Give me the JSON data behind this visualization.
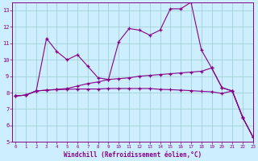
{
  "x": [
    0,
    1,
    2,
    3,
    4,
    5,
    6,
    7,
    8,
    9,
    10,
    11,
    12,
    13,
    14,
    15,
    16,
    17,
    18,
    19,
    20,
    21,
    22,
    23
  ],
  "curve1": [
    7.8,
    7.85,
    8.1,
    11.3,
    10.5,
    10.0,
    10.3,
    9.6,
    8.9,
    8.8,
    11.1,
    11.9,
    11.8,
    11.5,
    11.8,
    13.1,
    13.1,
    13.5,
    10.6,
    9.5,
    8.3,
    8.1,
    6.5,
    5.3
  ],
  "curve2": [
    7.8,
    7.85,
    8.1,
    8.15,
    8.2,
    8.25,
    8.4,
    8.55,
    8.65,
    8.8,
    8.85,
    8.9,
    9.0,
    9.05,
    9.1,
    9.15,
    9.2,
    9.25,
    9.3,
    9.5,
    8.3,
    8.1,
    6.5,
    5.3
  ],
  "curve3": [
    7.8,
    7.85,
    8.1,
    8.15,
    8.18,
    8.2,
    8.22,
    8.22,
    8.22,
    8.25,
    8.25,
    8.25,
    8.25,
    8.25,
    8.2,
    8.18,
    8.15,
    8.12,
    8.08,
    8.05,
    7.95,
    8.1,
    6.5,
    5.3
  ],
  "line_color": "#880088",
  "bg_color": "#cceeff",
  "grid_color": "#99cccc",
  "ylim": [
    5,
    13.5
  ],
  "xlim": [
    -0.3,
    23
  ],
  "yticks": [
    5,
    6,
    7,
    8,
    9,
    10,
    11,
    12,
    13
  ],
  "xticks": [
    0,
    1,
    2,
    3,
    4,
    5,
    6,
    7,
    8,
    9,
    10,
    11,
    12,
    13,
    14,
    15,
    16,
    17,
    18,
    19,
    20,
    21,
    22,
    23
  ],
  "xlabel": "Windchill (Refroidissement éolien,°C)",
  "font_color": "#880088"
}
